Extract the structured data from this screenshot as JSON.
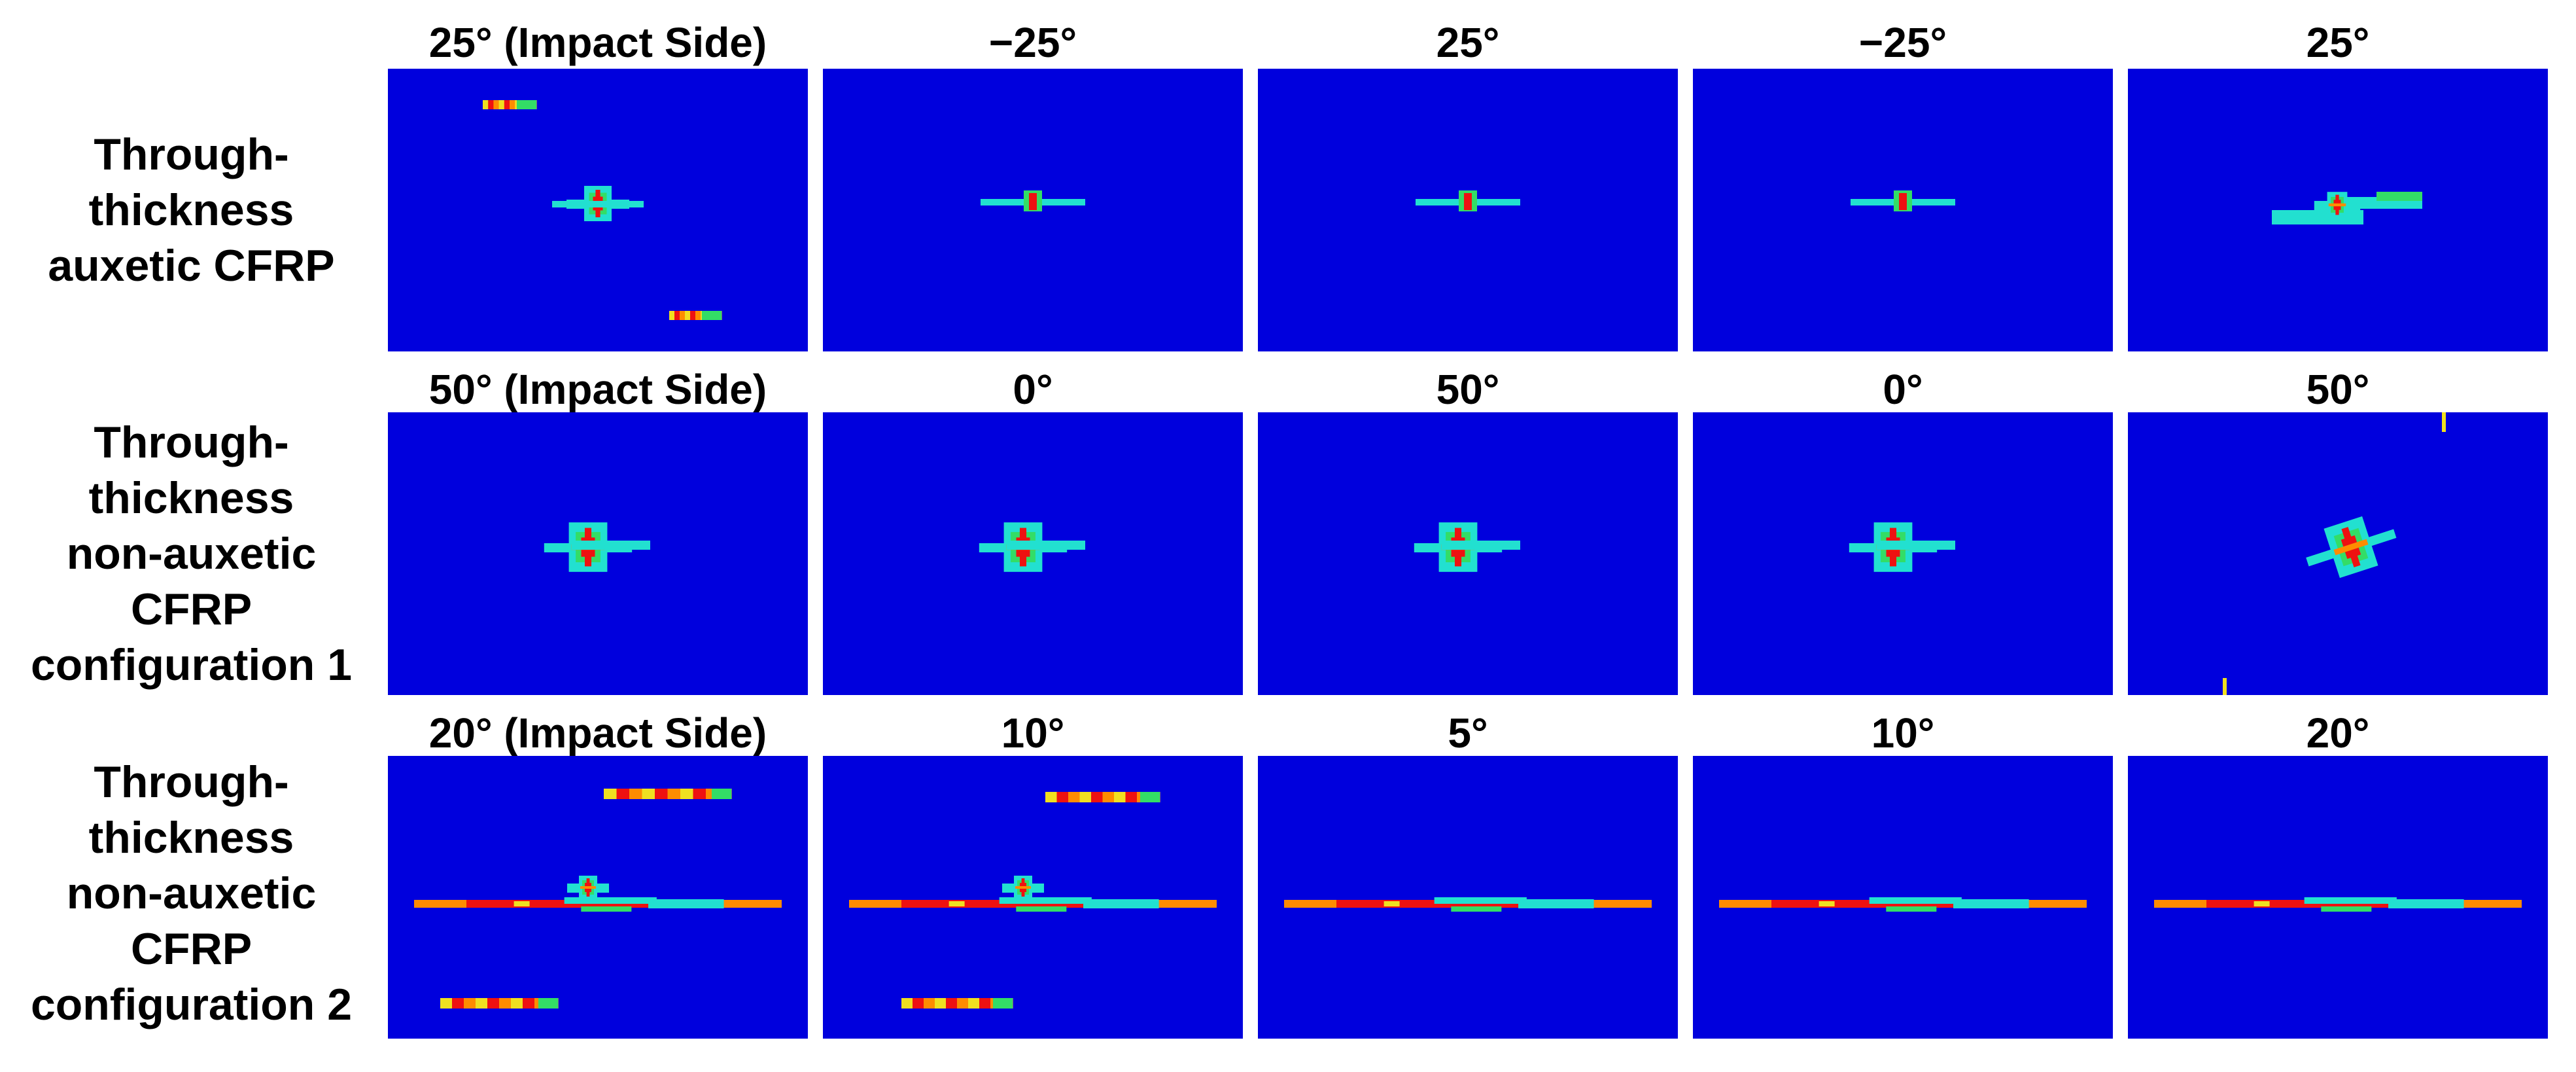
{
  "figure": {
    "rows": [
      {
        "label": [
          "Through-",
          "thickness",
          "auxetic CFRP"
        ],
        "panels": [
          {
            "title": "25° (Impact Side)",
            "damage": "scattered-bands"
          },
          {
            "title": "−25°",
            "damage": "small-cross"
          },
          {
            "title": "25°",
            "damage": "small-cross"
          },
          {
            "title": "−25°",
            "damage": "small-cross"
          },
          {
            "title": "25°",
            "damage": "offset-bands"
          }
        ]
      },
      {
        "label": [
          "Through-",
          "thickness",
          "non-auxetic",
          "CFRP",
          "configuration 1"
        ],
        "panels": [
          {
            "title": "50° (Impact Side)",
            "damage": "central-cluster"
          },
          {
            "title": "0°",
            "damage": "central-cluster"
          },
          {
            "title": "50°",
            "damage": "central-cluster"
          },
          {
            "title": "0°",
            "damage": "central-cluster"
          },
          {
            "title": "50°",
            "damage": "diagonal-cluster"
          }
        ]
      },
      {
        "label": [
          "Through-",
          "thickness",
          "non-auxetic",
          "CFRP",
          "configuration 2"
        ],
        "panels": [
          {
            "title": "20° (Impact Side)",
            "damage": "long-band-scattered"
          },
          {
            "title": "10°",
            "damage": "long-band-scattered"
          },
          {
            "title": "5°",
            "damage": "long-band"
          },
          {
            "title": "10°",
            "damage": "long-band"
          },
          {
            "title": "20°",
            "damage": "long-band"
          }
        ]
      }
    ],
    "colors": {
      "background": "#0000dd",
      "cyan": "#22e0d0",
      "green": "#33dd66",
      "yellow": "#f0e020",
      "orange": "#ff8c00",
      "red": "#ee1111"
    }
  }
}
